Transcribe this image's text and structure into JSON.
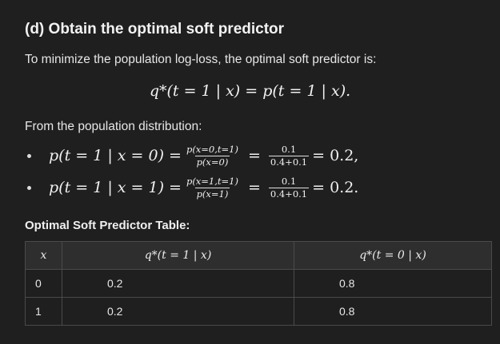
{
  "heading": "(d) Obtain the optimal soft predictor",
  "intro": "To minimize the population log-loss, the optimal soft predictor is:",
  "display_equation": "q*(t = 1 | x) = p(t = 1 | x).",
  "from_population": "From the population distribution:",
  "bullets": [
    {
      "lhs": "p(t = 1 | x = 0) =",
      "frac1_num": "p(x=0,t=1)",
      "frac1_den": "p(x=0)",
      "mid": "=",
      "frac2_num": "0.1",
      "frac2_den": "0.4+0.1",
      "result": "= 0.2,"
    },
    {
      "lhs": "p(t = 1 | x = 1) =",
      "frac1_num": "p(x=1,t=1)",
      "frac1_den": "p(x=1)",
      "mid": "=",
      "frac2_num": "0.1",
      "frac2_den": "0.4+0.1",
      "result": "= 0.2."
    }
  ],
  "table_title": "Optimal Soft Predictor Table:",
  "table": {
    "headers": [
      "x",
      "q*(t = 1 | x)",
      "q*(t = 0 | x)"
    ],
    "rows": [
      [
        "0",
        "0.2",
        "0.8"
      ],
      [
        "1",
        "0.2",
        "0.8"
      ]
    ]
  }
}
